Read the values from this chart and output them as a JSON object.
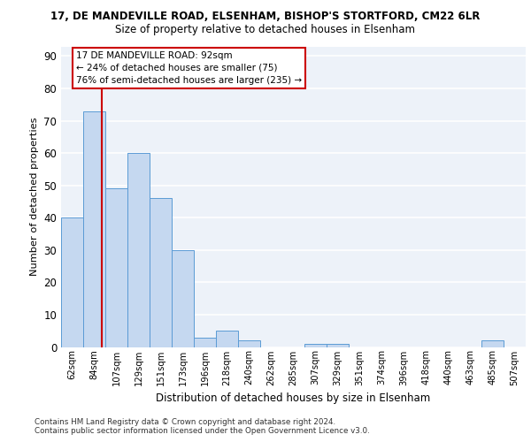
{
  "title_line1": "17, DE MANDEVILLE ROAD, ELSENHAM, BISHOP'S STORTFORD, CM22 6LR",
  "title_line2": "Size of property relative to detached houses in Elsenham",
  "xlabel": "Distribution of detached houses by size in Elsenham",
  "ylabel": "Number of detached properties",
  "footnote": "Contains HM Land Registry data © Crown copyright and database right 2024.\nContains public sector information licensed under the Open Government Licence v3.0.",
  "categories": [
    "62sqm",
    "84sqm",
    "107sqm",
    "129sqm",
    "151sqm",
    "173sqm",
    "196sqm",
    "218sqm",
    "240sqm",
    "262sqm",
    "285sqm",
    "307sqm",
    "329sqm",
    "351sqm",
    "374sqm",
    "396sqm",
    "418sqm",
    "440sqm",
    "463sqm",
    "485sqm",
    "507sqm"
  ],
  "values": [
    40,
    73,
    49,
    60,
    46,
    30,
    3,
    5,
    2,
    0,
    0,
    1,
    1,
    0,
    0,
    0,
    0,
    0,
    0,
    2,
    0
  ],
  "bar_color": "#c5d8f0",
  "bar_edge_color": "#5b9bd5",
  "annotation_text": "17 DE MANDEVILLE ROAD: 92sqm\n← 24% of detached houses are smaller (75)\n76% of semi-detached houses are larger (235) →",
  "annotation_box_color": "#ffffff",
  "annotation_box_edge": "#cc0000",
  "vline_color": "#cc0000",
  "ylim": [
    0,
    93
  ],
  "yticks": [
    0,
    10,
    20,
    30,
    40,
    50,
    60,
    70,
    80,
    90
  ],
  "bg_color": "#edf2f9",
  "grid_color": "#ffffff"
}
